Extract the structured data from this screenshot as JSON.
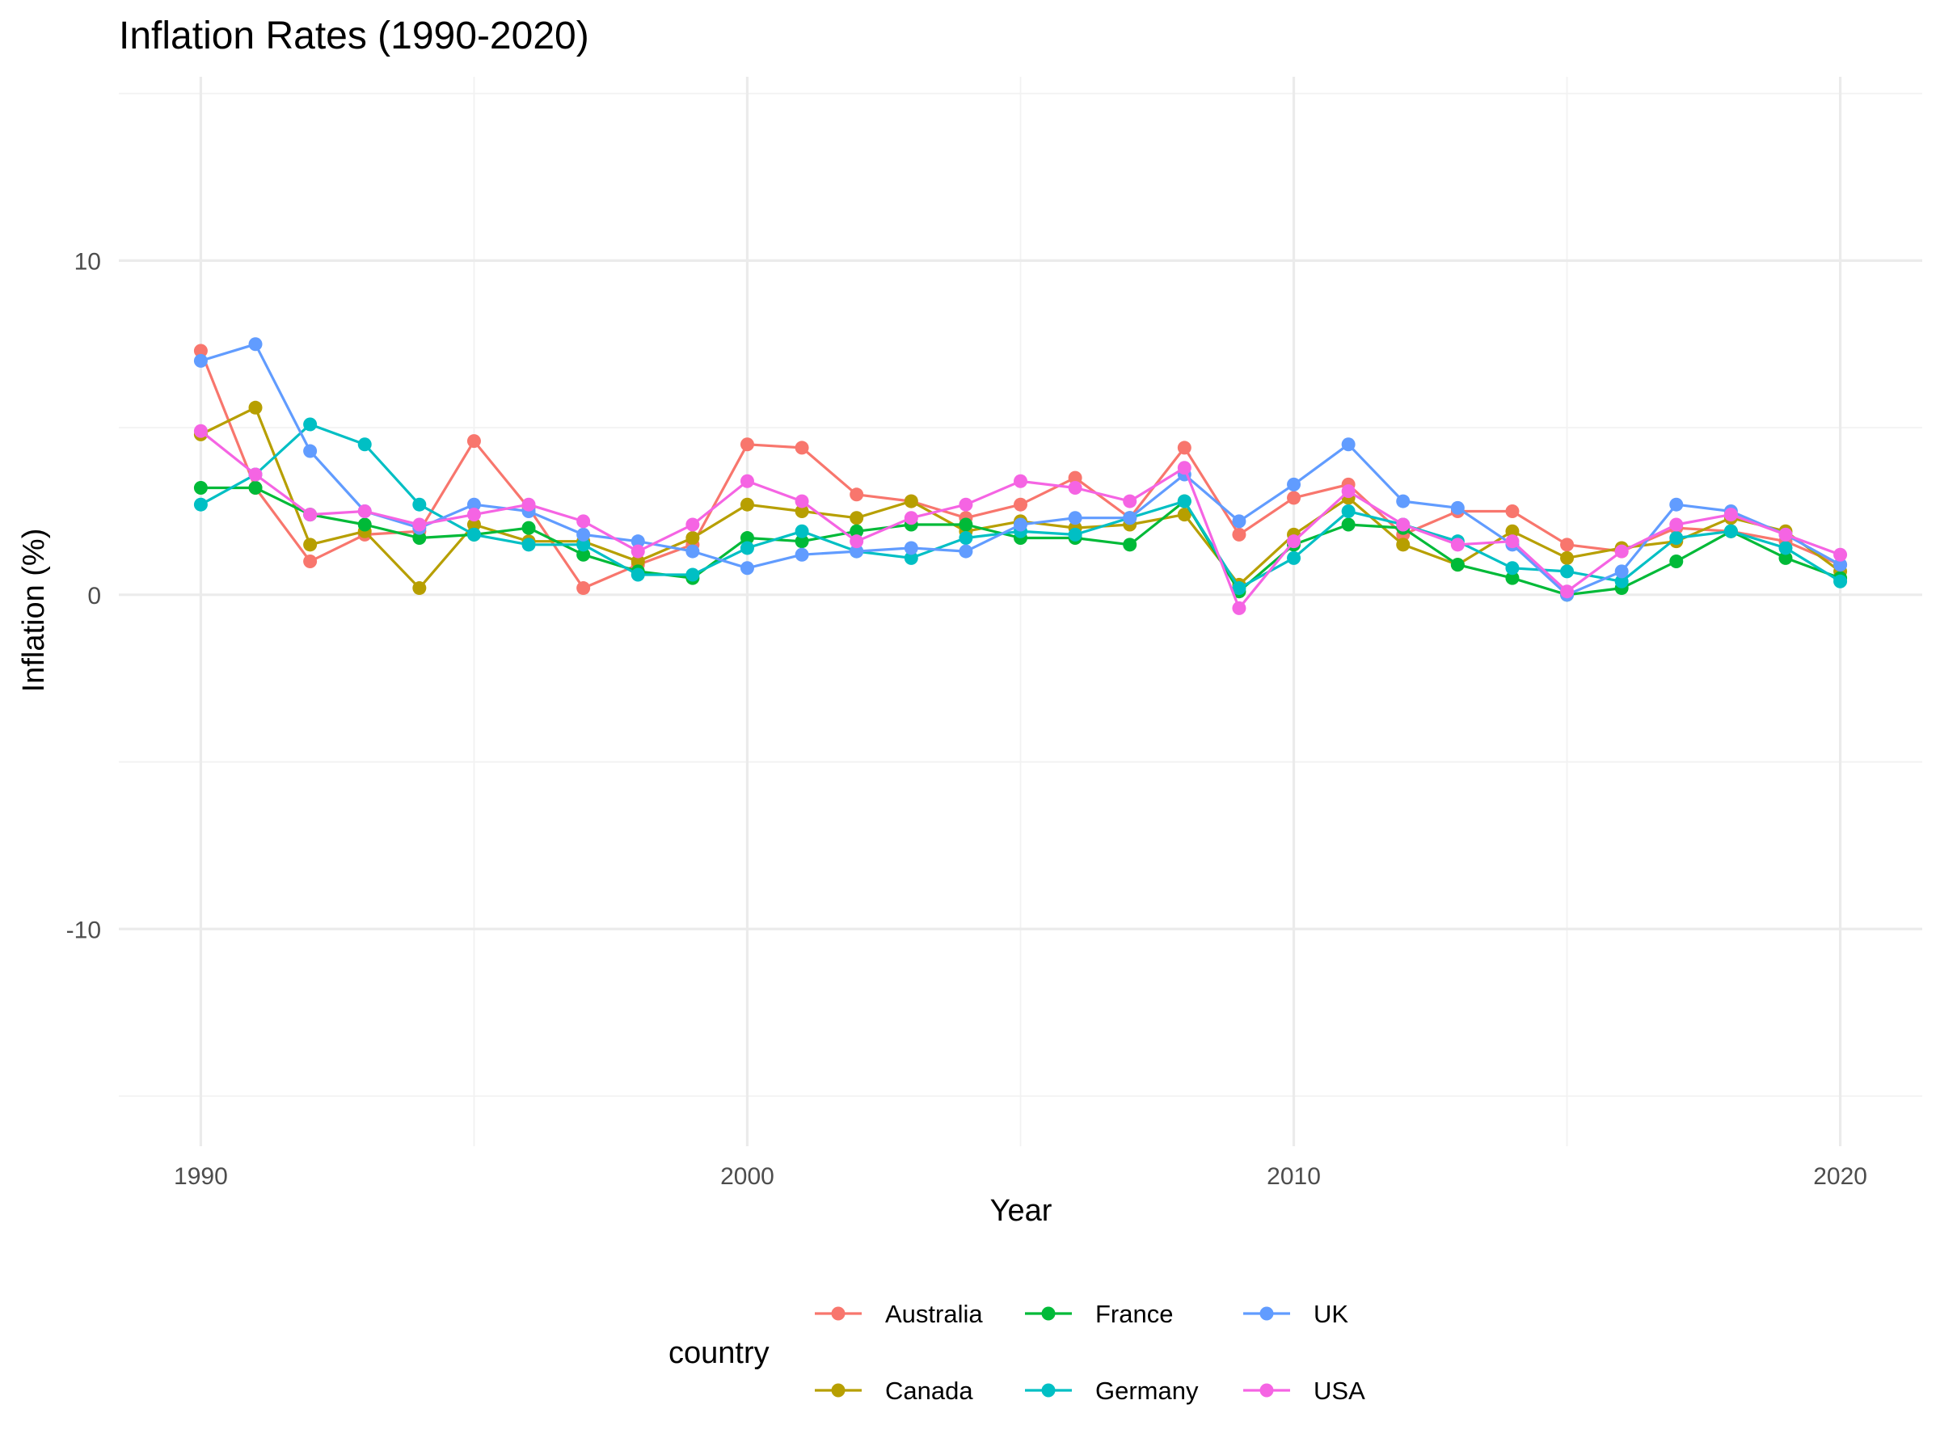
{
  "chart_data": {
    "type": "line",
    "title": "Inflation Rates (1990-2020)",
    "xlabel": "Year",
    "ylabel": "Inflation (%)",
    "xlim": [
      1988.5,
      2021.5
    ],
    "ylim": [
      -16.5,
      15.5
    ],
    "x_ticks": [
      1990,
      2000,
      2010,
      2020
    ],
    "y_ticks": [
      -10,
      0,
      10
    ],
    "grid": true,
    "legend_title": "country",
    "legend_position": "bottom",
    "x": [
      1990,
      1991,
      1992,
      1993,
      1994,
      1995,
      1996,
      1997,
      1998,
      1999,
      2000,
      2001,
      2002,
      2003,
      2004,
      2005,
      2006,
      2007,
      2008,
      2009,
      2010,
      2011,
      2012,
      2013,
      2014,
      2015,
      2016,
      2017,
      2018,
      2019,
      2020
    ],
    "series": [
      {
        "name": "Australia",
        "color": "#F8766D",
        "values": [
          7.3,
          3.2,
          1.0,
          1.8,
          1.9,
          4.6,
          2.6,
          0.2,
          0.9,
          1.5,
          4.5,
          4.4,
          3.0,
          2.8,
          2.3,
          2.7,
          3.5,
          2.3,
          4.4,
          1.8,
          2.9,
          3.3,
          1.8,
          2.5,
          2.5,
          1.5,
          1.3,
          2.0,
          1.9,
          1.6,
          0.9
        ]
      },
      {
        "name": "Canada",
        "color": "#B79F00",
        "values": [
          4.8,
          5.6,
          1.5,
          1.9,
          0.2,
          2.1,
          1.6,
          1.6,
          1.0,
          1.7,
          2.7,
          2.5,
          2.3,
          2.8,
          1.9,
          2.2,
          2.0,
          2.1,
          2.4,
          0.3,
          1.8,
          2.9,
          1.5,
          0.9,
          1.9,
          1.1,
          1.4,
          1.6,
          2.3,
          1.9,
          0.7
        ]
      },
      {
        "name": "France",
        "color": "#00BA38",
        "values": [
          3.2,
          3.2,
          2.4,
          2.1,
          1.7,
          1.8,
          2.0,
          1.2,
          0.7,
          0.5,
          1.7,
          1.6,
          1.9,
          2.1,
          2.1,
          1.7,
          1.7,
          1.5,
          2.8,
          0.1,
          1.5,
          2.1,
          2.0,
          0.9,
          0.5,
          0.0,
          0.2,
          1.0,
          1.9,
          1.1,
          0.5
        ]
      },
      {
        "name": "Germany",
        "color": "#00BFC4",
        "values": [
          2.7,
          3.6,
          5.1,
          4.5,
          2.7,
          1.8,
          1.5,
          1.5,
          0.6,
          0.6,
          1.4,
          1.9,
          1.3,
          1.1,
          1.7,
          1.9,
          1.8,
          2.3,
          2.8,
          0.2,
          1.1,
          2.5,
          2.1,
          1.6,
          0.8,
          0.7,
          0.4,
          1.7,
          1.9,
          1.4,
          0.4
        ]
      },
      {
        "name": "UK",
        "color": "#619CFF",
        "values": [
          7.0,
          7.5,
          4.3,
          2.5,
          2.0,
          2.7,
          2.5,
          1.8,
          1.6,
          1.3,
          0.8,
          1.2,
          1.3,
          1.4,
          1.3,
          2.1,
          2.3,
          2.3,
          3.6,
          2.2,
          3.3,
          4.5,
          2.8,
          2.6,
          1.5,
          0.0,
          0.7,
          2.7,
          2.5,
          1.8,
          0.9
        ]
      },
      {
        "name": "USA",
        "color": "#F564E3",
        "values": [
          4.9,
          3.6,
          2.4,
          2.5,
          2.1,
          2.4,
          2.7,
          2.2,
          1.3,
          2.1,
          3.4,
          2.8,
          1.6,
          2.3,
          2.7,
          3.4,
          3.2,
          2.8,
          3.8,
          -0.4,
          1.6,
          3.1,
          2.1,
          1.5,
          1.6,
          0.1,
          1.3,
          2.1,
          2.4,
          1.8,
          1.2
        ]
      }
    ]
  }
}
